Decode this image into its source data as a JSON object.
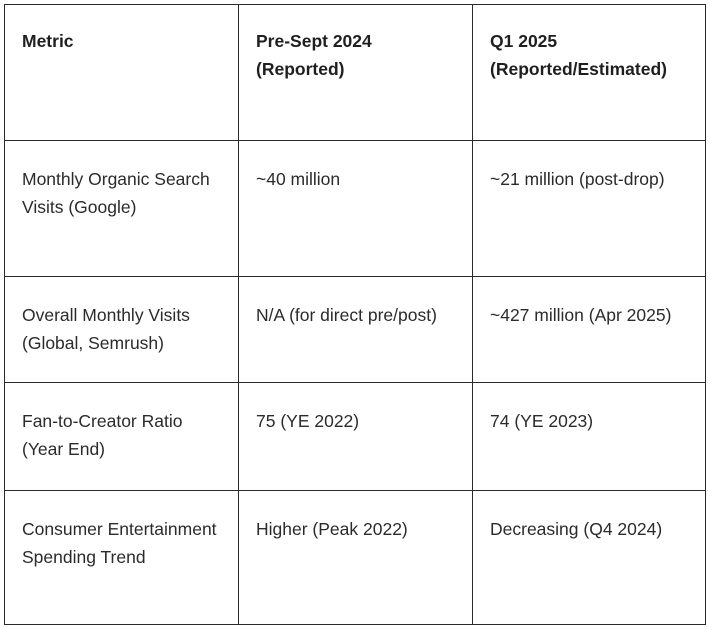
{
  "table": {
    "headers": [
      "Metric",
      "Pre-Sept 2024 (Reported)",
      "Q1 2025 (Reported/Estimated)"
    ],
    "rows": [
      [
        "Monthly Organic Search Visits (Google)",
        "~40 million",
        "~21 million (post-drop)"
      ],
      [
        "Overall Monthly Visits (Global, Semrush)",
        "N/A (for direct pre/post)",
        "~427 million (Apr 2025)"
      ],
      [
        "Fan-to-Creator Ratio (Year End)",
        "75 (YE 2022)",
        "74 (YE 2023)"
      ],
      [
        "Consumer Entertainment Spending Trend",
        "Higher (Peak 2022)",
        "Decreasing (Q4 2024)"
      ]
    ]
  }
}
